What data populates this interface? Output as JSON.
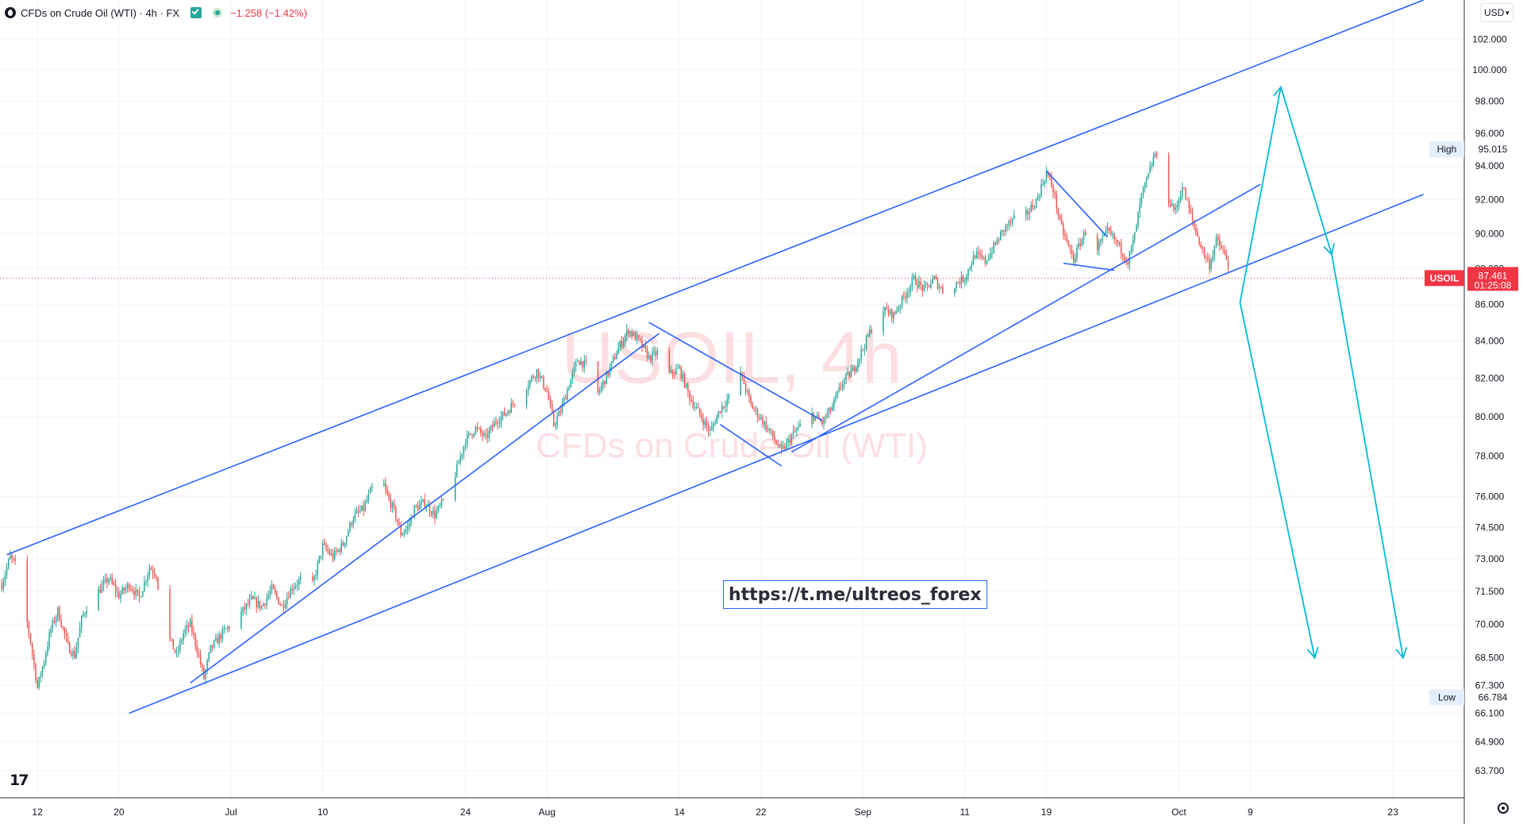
{
  "header": {
    "title": "CFDs on Crude Oil (WTI) · 4h · FX",
    "change": "−1.258 (−1.42%)"
  },
  "currency": "USD",
  "watermark": {
    "symbol": "USOIL, 4h",
    "name": "CFDs on Crude Oil (WTI)"
  },
  "link_label": "https://t.me/ultreos_forex",
  "price_labels": [
    {
      "label": "High",
      "value": "95.015",
      "price": 95.015,
      "kind": "high"
    },
    {
      "label": "USOIL",
      "value": "87.461",
      "countdown": "01:25:08",
      "price": 87.461,
      "kind": "last"
    },
    {
      "label": "Low",
      "value": "66.784",
      "price": 66.784,
      "kind": "low"
    }
  ],
  "colors": {
    "up": "#26a69a",
    "down": "#ef5350",
    "trend": "#2962ff",
    "projection": "#00bcd4",
    "last": "#f23645"
  },
  "chart_data": {
    "type": "candlestick",
    "timeframe": "4h",
    "y_scale": "log",
    "ylim": [
      62.6,
      104.6
    ],
    "y_ticks": [
      "63.700",
      "64.900",
      "66.100",
      "67.300",
      "68.500",
      "70.000",
      "71.500",
      "73.000",
      "74.500",
      "76.000",
      "78.000",
      "80.000",
      "82.000",
      "84.000",
      "86.000",
      "88.000",
      "90.000",
      "92.000",
      "94.000",
      "96.000",
      "98.000",
      "100.000",
      "102.000"
    ],
    "x_ticks": [
      "12",
      "20",
      "Jul",
      "10",
      "24",
      "Aug",
      "14",
      "22",
      "Sep",
      "11",
      "19",
      "Oct",
      "9",
      "23"
    ],
    "x_tick_dates": [
      "06-12",
      "06-20",
      "07-01",
      "07-10",
      "07-24",
      "08-01",
      "08-14",
      "08-22",
      "09-01",
      "09-11",
      "09-19",
      "10-02",
      "10-09",
      "10-23"
    ],
    "x_range": [
      "06-08 08:00",
      "10-30 00:00"
    ],
    "price_path": [
      [
        "06-08 12:00",
        71.8
      ],
      [
        "06-09 08:00",
        73.1
      ],
      [
        "06-10 00:00",
        72.6
      ],
      [
        "06-10 16:00",
        70.9
      ],
      [
        "06-11 08:00",
        69.2
      ],
      [
        "06-12 00:00",
        67.2
      ],
      [
        "06-12 16:00",
        68.4
      ],
      [
        "06-13 08:00",
        69.8
      ],
      [
        "06-14 00:00",
        70.6
      ],
      [
        "06-15 00:00",
        69.0
      ],
      [
        "06-15 16:00",
        68.6
      ],
      [
        "06-16 08:00",
        70.2
      ],
      [
        "06-17 00:00",
        71.0
      ],
      [
        "06-18 00:00",
        71.5
      ],
      [
        "06-19 00:00",
        72.1
      ],
      [
        "06-20 00:00",
        71.3
      ],
      [
        "06-21 00:00",
        71.8
      ],
      [
        "06-22 00:00",
        71.2
      ],
      [
        "06-23 00:00",
        72.6
      ],
      [
        "06-23 16:00",
        72.3
      ],
      [
        "06-24 08:00",
        70.1
      ],
      [
        "06-25 00:00",
        69.3
      ],
      [
        "06-25 16:00",
        68.6
      ],
      [
        "06-26 08:00",
        69.6
      ],
      [
        "06-27 00:00",
        70.0
      ],
      [
        "06-27 16:00",
        68.9
      ],
      [
        "06-28 08:00",
        67.6
      ],
      [
        "06-29 00:00",
        68.9
      ],
      [
        "06-30 00:00",
        69.5
      ],
      [
        "07-01 00:00",
        70.0
      ],
      [
        "07-02 00:00",
        70.5
      ],
      [
        "07-03 00:00",
        71.1
      ],
      [
        "07-04 00:00",
        70.8
      ],
      [
        "07-05 00:00",
        71.6
      ],
      [
        "07-06 00:00",
        70.8
      ],
      [
        "07-07 00:00",
        71.7
      ],
      [
        "07-08 00:00",
        72.1
      ],
      [
        "07-09 00:00",
        71.8
      ],
      [
        "07-10 00:00",
        73.6
      ],
      [
        "07-11 00:00",
        73.1
      ],
      [
        "07-12 00:00",
        73.7
      ],
      [
        "07-13 00:00",
        75.0
      ],
      [
        "07-14 00:00",
        75.4
      ],
      [
        "07-15 00:00",
        76.6
      ],
      [
        "07-15 16:00",
        77.1
      ],
      [
        "07-16 08:00",
        76.0
      ],
      [
        "07-17 00:00",
        75.3
      ],
      [
        "07-17 16:00",
        74.2
      ],
      [
        "07-18 08:00",
        74.5
      ],
      [
        "07-19 00:00",
        75.4
      ],
      [
        "07-20 00:00",
        75.7
      ],
      [
        "07-21 00:00",
        75.1
      ],
      [
        "07-22 00:00",
        75.9
      ],
      [
        "07-23 00:00",
        77.1
      ],
      [
        "07-24 00:00",
        78.8
      ],
      [
        "07-25 00:00",
        79.4
      ],
      [
        "07-26 00:00",
        78.9
      ],
      [
        "07-27 00:00",
        79.8
      ],
      [
        "07-28 00:00",
        80.2
      ],
      [
        "07-29 00:00",
        80.9
      ],
      [
        "07-30 00:00",
        81.6
      ],
      [
        "07-31 00:00",
        82.4
      ],
      [
        "08-01 00:00",
        81.3
      ],
      [
        "08-01 16:00",
        79.6
      ],
      [
        "08-02 08:00",
        80.3
      ],
      [
        "08-03 00:00",
        81.4
      ],
      [
        "08-04 00:00",
        83.0
      ],
      [
        "08-05 00:00",
        82.6
      ],
      [
        "08-06 00:00",
        81.2
      ],
      [
        "08-07 00:00",
        82.3
      ],
      [
        "08-08 00:00",
        83.6
      ],
      [
        "08-09 00:00",
        84.6
      ],
      [
        "08-10 00:00",
        84.0
      ],
      [
        "08-11 00:00",
        83.1
      ],
      [
        "08-12 00:00",
        83.4
      ],
      [
        "08-13 00:00",
        82.2
      ],
      [
        "08-14 00:00",
        82.5
      ],
      [
        "08-15 00:00",
        81.0
      ],
      [
        "08-16 00:00",
        80.1
      ],
      [
        "08-17 00:00",
        79.2
      ],
      [
        "08-18 00:00",
        80.4
      ],
      [
        "08-19 00:00",
        81.1
      ],
      [
        "08-20 00:00",
        82.3
      ],
      [
        "08-21 00:00",
        80.6
      ],
      [
        "08-22 00:00",
        79.9
      ],
      [
        "08-23 00:00",
        79.1
      ],
      [
        "08-24 00:00",
        78.2
      ],
      [
        "08-25 00:00",
        79.0
      ],
      [
        "08-26 00:00",
        79.6
      ],
      [
        "08-27 00:00",
        80.1
      ],
      [
        "08-28 00:00",
        79.7
      ],
      [
        "08-29 00:00",
        80.5
      ],
      [
        "08-30 00:00",
        81.8
      ],
      [
        "08-31 00:00",
        82.4
      ],
      [
        "09-01 00:00",
        83.6
      ],
      [
        "09-02 00:00",
        84.9
      ],
      [
        "09-03 00:00",
        85.7
      ],
      [
        "09-04 00:00",
        85.4
      ],
      [
        "09-05 00:00",
        86.4
      ],
      [
        "09-06 00:00",
        87.4
      ],
      [
        "09-07 00:00",
        86.8
      ],
      [
        "09-08 00:00",
        87.4
      ],
      [
        "09-09 00:00",
        86.6
      ],
      [
        "09-10 00:00",
        87.1
      ],
      [
        "09-11 00:00",
        87.5
      ],
      [
        "09-12 00:00",
        88.8
      ],
      [
        "09-13 00:00",
        88.4
      ],
      [
        "09-14 00:00",
        89.4
      ],
      [
        "09-15 00:00",
        90.4
      ],
      [
        "09-16 00:00",
        90.9
      ],
      [
        "09-17 00:00",
        91.1
      ],
      [
        "09-18 00:00",
        91.9
      ],
      [
        "09-19 00:00",
        93.6
      ],
      [
        "09-19 16:00",
        92.6
      ],
      [
        "09-20 08:00",
        90.6
      ],
      [
        "09-21 00:00",
        89.5
      ],
      [
        "09-21 16:00",
        88.5
      ],
      [
        "09-22 08:00",
        89.5
      ],
      [
        "09-23 00:00",
        90.3
      ],
      [
        "09-24 00:00",
        89.2
      ],
      [
        "09-25 00:00",
        90.1
      ],
      [
        "09-26 00:00",
        89.4
      ],
      [
        "09-27 00:00",
        88.4
      ],
      [
        "09-27 16:00",
        89.9
      ],
      [
        "09-28 08:00",
        92.2
      ],
      [
        "09-29 00:00",
        93.4
      ],
      [
        "09-29 16:00",
        94.8
      ],
      [
        "09-30 08:00",
        93.1
      ],
      [
        "10-01 00:00",
        92.0
      ],
      [
        "10-01 16:00",
        91.3
      ],
      [
        "10-02 08:00",
        92.8
      ],
      [
        "10-03 00:00",
        91.4
      ],
      [
        "10-03 16:00",
        90.1
      ],
      [
        "10-04 08:00",
        89.0
      ],
      [
        "10-05 00:00",
        88.2
      ],
      [
        "10-05 16:00",
        89.6
      ],
      [
        "10-06 08:00",
        89.0
      ],
      [
        "10-07 00:00",
        87.9
      ],
      [
        "10-07 08:00",
        87.461
      ]
    ],
    "annotations": {
      "trend_lines": [
        {
          "from": [
            "06-09 00:00",
            73.2
          ],
          "to": [
            "10-26 00:00",
            104.6
          ]
        },
        {
          "from": [
            "06-21 00:00",
            66.1
          ],
          "to": [
            "10-26 00:00",
            92.3
          ]
        },
        {
          "from": [
            "06-27 00:00",
            67.4
          ],
          "to": [
            "08-12 00:00",
            84.4
          ]
        },
        {
          "from": [
            "08-25 00:00",
            78.2
          ],
          "to": [
            "10-10 00:00",
            92.9
          ]
        },
        {
          "from": [
            "08-11 00:00",
            85.0
          ],
          "to": [
            "08-28 00:00",
            79.8
          ]
        },
        {
          "from": [
            "08-18 00:00",
            79.6
          ],
          "to": [
            "08-24 00:00",
            77.5
          ]
        },
        {
          "from": [
            "09-19 00:00",
            93.7
          ],
          "to": [
            "09-25 00:00",
            89.8
          ]
        },
        {
          "from": [
            "09-20 16:00",
            88.3
          ],
          "to": [
            "09-25 16:00",
            87.9
          ]
        }
      ],
      "projection_arrows": [
        {
          "points": [
            [
              "10-08 00:00",
              86.1
            ],
            [
              "10-12 00:00",
              98.9
            ],
            [
              "10-17 00:00",
              88.8
            ],
            [
              "10-24 00:00",
              68.5
            ]
          ]
        },
        {
          "points": [
            [
              "10-08 00:00",
              86.1
            ],
            [
              "10-15 08:00",
              68.5
            ]
          ]
        }
      ]
    }
  }
}
